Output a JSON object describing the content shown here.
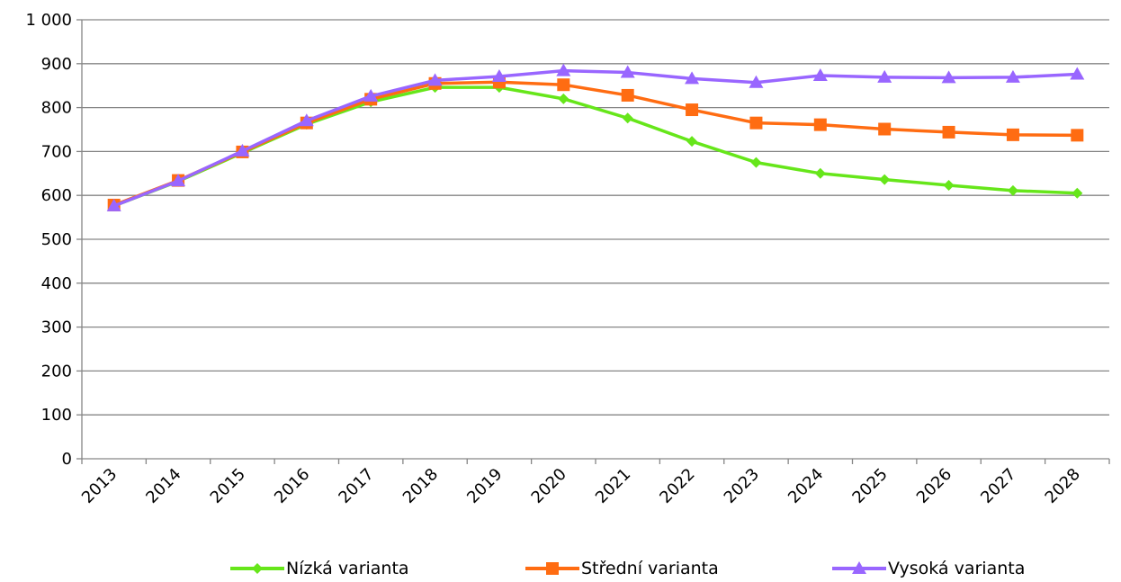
{
  "chart_data": {
    "type": "line",
    "categories": [
      "2013",
      "2014",
      "2015",
      "2016",
      "2017",
      "2018",
      "2019",
      "2020",
      "2021",
      "2022",
      "2023",
      "2024",
      "2025",
      "2026",
      "2027",
      "2028"
    ],
    "y_tick_labels": [
      "0",
      "100",
      "200",
      "300",
      "400",
      "500",
      "600",
      "700",
      "800",
      "900",
      "1 000"
    ],
    "ylim": [
      0,
      1000
    ],
    "y_step": 100,
    "grid": true,
    "legend_position": "bottom",
    "series": [
      {
        "name": "Nízká varianta",
        "color": "#66e61a",
        "marker": "diamond",
        "values": [
          576,
          632,
          697,
          762,
          813,
          846,
          846,
          820,
          776,
          723,
          675,
          650,
          636,
          623,
          611,
          605
        ]
      },
      {
        "name": "Střední varianta",
        "color": "#ff6c12",
        "marker": "square",
        "values": [
          578,
          634,
          699,
          765,
          819,
          855,
          858,
          852,
          828,
          795,
          765,
          761,
          751,
          744,
          738,
          737
        ]
      },
      {
        "name": "Vysoká varianta",
        "color": "#9966ff",
        "marker": "triangle",
        "values": [
          576,
          633,
          701,
          770,
          826,
          862,
          871,
          884,
          880,
          866,
          857,
          873,
          869,
          868,
          869,
          876
        ]
      }
    ]
  }
}
